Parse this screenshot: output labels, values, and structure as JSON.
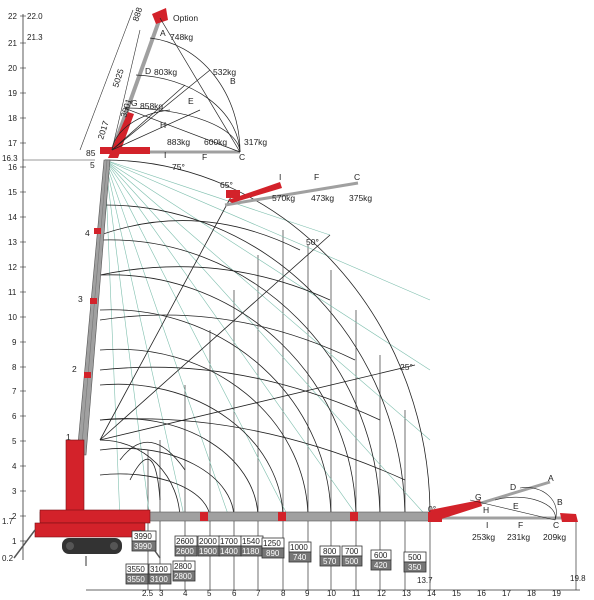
{
  "left_axis": {
    "ticks": [
      "22",
      "21",
      "20",
      "19",
      "18",
      "17",
      "16",
      "15",
      "14",
      "13",
      "12",
      "11",
      "10",
      "9",
      "8",
      "7",
      "6",
      "5",
      "4",
      "3",
      "2",
      "1"
    ],
    "side_values": [
      "22.0",
      "21.3",
      "16.3",
      "1.7",
      "0.2"
    ]
  },
  "bottom_axis": {
    "ticks": [
      "2.5",
      "3",
      "4",
      "5",
      "6",
      "7",
      "8",
      "9",
      "10",
      "11",
      "12",
      "13",
      "14",
      "15",
      "16",
      "17",
      "18",
      "19"
    ],
    "extra": [
      "13.7",
      "19.8"
    ]
  },
  "jib_labels": {
    "option": "Option",
    "A": "A",
    "B": "B",
    "C": "C",
    "D": "D",
    "E": "E",
    "F": "F",
    "G": "G",
    "H": "H",
    "I": "I",
    "dim_888": "888",
    "dim_5025": "5025",
    "dim_3501": "3501",
    "dim_2017": "2017",
    "w_748": "748kg",
    "w_803": "803kg",
    "w_532": "532kg",
    "w_858": "858kg",
    "w_883": "883kg",
    "w_600": "600kg",
    "w_317": "317kg",
    "angle_85": "85",
    "boom_5": "5"
  },
  "angles": {
    "a75": "75°",
    "a65": "65°",
    "a50": "50°",
    "a25": "25°",
    "a0": "0°"
  },
  "jib65": {
    "I": "I",
    "F": "F",
    "C": "C",
    "w_570": "570kg",
    "w_473": "473kg",
    "w_375": "375kg"
  },
  "jib0": {
    "A": "A",
    "B": "B",
    "C": "C",
    "D": "D",
    "E": "E",
    "F": "F",
    "G": "G",
    "H": "H",
    "I": "I",
    "w_253": "253kg",
    "w_231": "231kg",
    "w_209": "209kg"
  },
  "boom_sections": [
    "1",
    "2",
    "3",
    "4"
  ],
  "load_table": [
    {
      "top": "3990",
      "bottom": "3990"
    },
    {
      "top": "3550",
      "bottom": "3550"
    },
    {
      "top": "3100",
      "bottom": "3100"
    },
    {
      "top": "2800",
      "bottom": "2800"
    },
    {
      "top": "2600",
      "bottom": "2600"
    },
    {
      "top": "2000",
      "bottom": "1900"
    },
    {
      "top": "1700",
      "bottom": "1400"
    },
    {
      "top": "1540",
      "bottom": "1180"
    },
    {
      "top": "1250",
      "bottom": "890"
    },
    {
      "top": "1000",
      "bottom": "740"
    },
    {
      "top": "800",
      "bottom": "570"
    },
    {
      "top": "700",
      "bottom": "500"
    },
    {
      "top": "600",
      "bottom": "420"
    },
    {
      "top": "500",
      "bottom": "350"
    }
  ],
  "colors": {
    "crane_red": "#d3222a",
    "boom_grey": "#a0a0a0",
    "green_line": "#7fbfae",
    "dark": "#222222"
  }
}
